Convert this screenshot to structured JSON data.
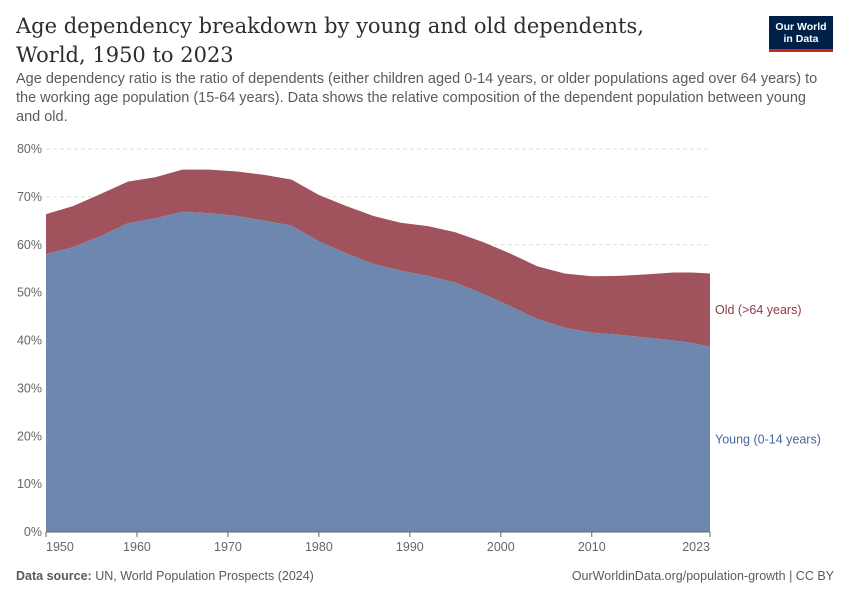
{
  "header": {
    "title": "Age dependency breakdown by young and old dependents, World, 1950 to 2023",
    "subtitle": "Age dependency ratio is the ratio of dependents (either children aged 0-14 years, or older populations aged over 64 years) to the working age population (15-64 years). Data shows the relative composition of the dependent population between young and old.",
    "logo_line1": "Our World",
    "logo_line2": "in Data"
  },
  "footer": {
    "source_label": "Data source:",
    "source_text": "UN, World Population Prospects (2024)",
    "credit": "OurWorldinData.org/population-growth | CC BY"
  },
  "colors": {
    "young": "#6d87ae",
    "old": "#a0535c",
    "old_label": "#8e3a44",
    "young_label": "#4866a0",
    "grid": "#dddddd",
    "axis": "#666666"
  },
  "chart_data": {
    "type": "area",
    "stacked": true,
    "x": [
      1950,
      1953,
      1956,
      1959,
      1962,
      1965,
      1968,
      1971,
      1974,
      1977,
      1980,
      1983,
      1986,
      1989,
      1992,
      1995,
      1998,
      2001,
      2004,
      2007,
      2010,
      2013,
      2016,
      2019,
      2021,
      2023
    ],
    "xticks": [
      1950,
      1960,
      1970,
      1980,
      1990,
      2000,
      2010,
      2023
    ],
    "yticks": [
      0,
      10,
      20,
      30,
      40,
      50,
      60,
      70,
      80
    ],
    "ylim": [
      0,
      80
    ],
    "xlim": [
      1950,
      2023
    ],
    "y_unit": "%",
    "grid": "horizontal dashed",
    "series": [
      {
        "name": "Young (0-14 years)",
        "values": [
          58.0,
          59.5,
          61.8,
          64.5,
          65.5,
          66.9,
          66.6,
          66.0,
          65.0,
          64.0,
          60.7,
          58.2,
          56.0,
          54.6,
          53.5,
          52.1,
          49.8,
          47.2,
          44.5,
          42.7,
          41.6,
          41.2,
          40.6,
          40.0,
          39.5,
          38.7
        ]
      },
      {
        "name": "Old (>64 years)",
        "values": [
          8.4,
          8.6,
          8.8,
          8.7,
          8.6,
          8.8,
          9.1,
          9.3,
          9.6,
          9.6,
          9.7,
          9.9,
          10.0,
          10.0,
          10.4,
          10.5,
          10.8,
          11.0,
          11.0,
          11.3,
          11.8,
          12.3,
          13.2,
          14.2,
          14.7,
          15.3
        ]
      }
    ],
    "legend": "right, inline labels"
  }
}
